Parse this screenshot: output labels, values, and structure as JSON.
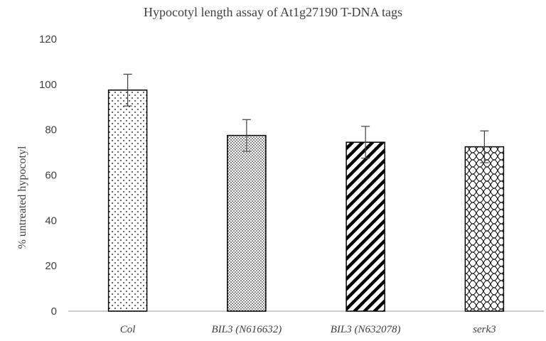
{
  "chart_data": {
    "type": "bar",
    "title": "Hypocotyl length assay of  At1g27190  T-DNA tags",
    "xlabel": "",
    "ylabel": "% untreated hypocotyl",
    "ylim": [
      0,
      120
    ],
    "yticks": [
      0,
      20,
      40,
      60,
      80,
      100,
      120
    ],
    "grid": false,
    "categories": [
      "Col",
      "BIL3 (N616632)",
      "BIL3 (N632078)",
      "serk3"
    ],
    "values": [
      97.5,
      77.5,
      74.5,
      72.5
    ],
    "errors": [
      7,
      7,
      7,
      7
    ],
    "patterns": [
      "sparse-dots",
      "dense-dots",
      "diagonal-stripes",
      "wave-crosshatch"
    ],
    "colors": {
      "outline": "#000000",
      "axis": "#b0b0b0",
      "text": "#404040"
    }
  }
}
